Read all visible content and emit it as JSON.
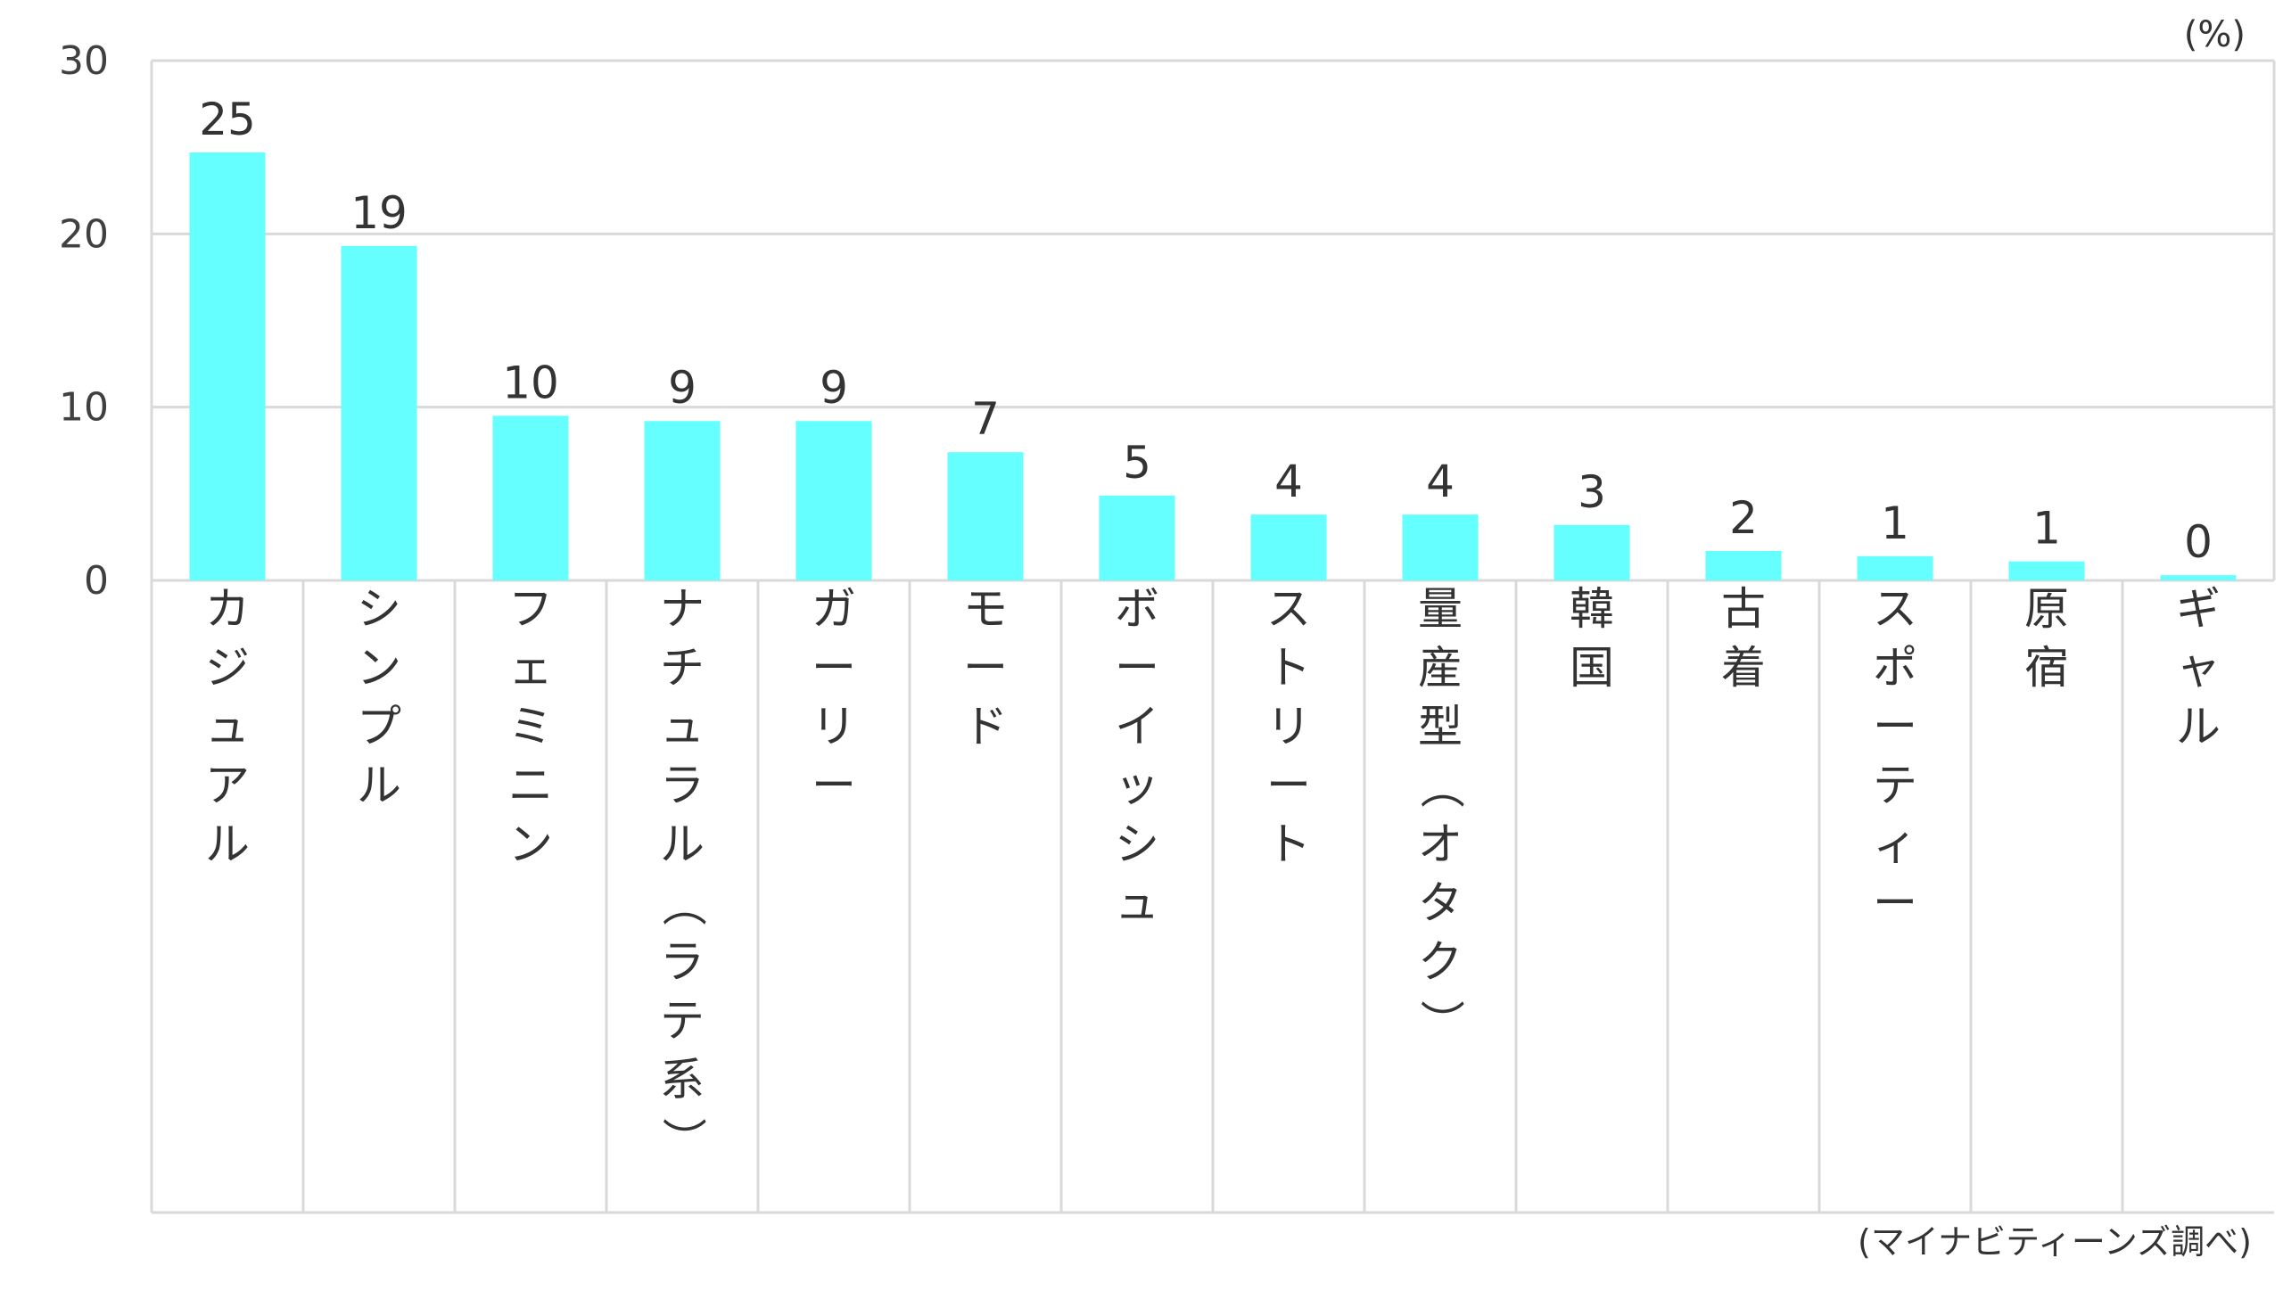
{
  "chart_data": {
    "type": "bar",
    "unit": "(%)",
    "source": "(マイナビティーンズ調べ)",
    "categories": [
      "カジュアル",
      "シンプル",
      "フェミニン",
      "ナチュラル（ラテ系）",
      "ガーリー",
      "モード",
      "ボーイッシュ",
      "ストリート",
      "量産型（オタク）",
      "韓国",
      "古着",
      "スポーティー",
      "原宿",
      "ギャル"
    ],
    "values": [
      25,
      19,
      10,
      9,
      9,
      7,
      5,
      4,
      4,
      3,
      2,
      1,
      1,
      0
    ],
    "bar_heights": [
      24.7,
      19.3,
      9.5,
      9.2,
      9.2,
      7.4,
      4.9,
      3.8,
      3.8,
      3.2,
      1.7,
      1.4,
      1.1,
      0.3
    ],
    "ylim": [
      0,
      30
    ],
    "yticks": [
      0,
      10,
      20,
      30
    ],
    "grid": true,
    "bar_color": "#66ffff"
  }
}
